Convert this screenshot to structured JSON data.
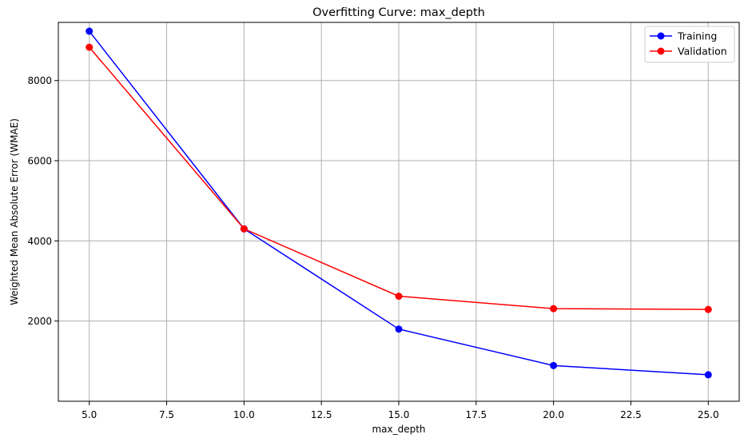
{
  "chart_data": {
    "type": "line",
    "title": "Overfitting Curve: max_depth",
    "xlabel": "max_depth",
    "ylabel": "Weighted Mean Absolute Error (WMAE)",
    "xlim": [
      4.0,
      26.0
    ],
    "ylim": [
      0,
      9450
    ],
    "x_ticks": [
      {
        "value": 5.0,
        "label": "5.0"
      },
      {
        "value": 7.5,
        "label": "7.5"
      },
      {
        "value": 10.0,
        "label": "10.0"
      },
      {
        "value": 12.5,
        "label": "12.5"
      },
      {
        "value": 15.0,
        "label": "15.0"
      },
      {
        "value": 17.5,
        "label": "17.5"
      },
      {
        "value": 20.0,
        "label": "20.0"
      },
      {
        "value": 22.5,
        "label": "22.5"
      },
      {
        "value": 25.0,
        "label": "25.0"
      }
    ],
    "y_ticks": [
      {
        "value": 2000,
        "label": "2000"
      },
      {
        "value": 4000,
        "label": "4000"
      },
      {
        "value": 6000,
        "label": "6000"
      },
      {
        "value": 8000,
        "label": "8000"
      }
    ],
    "grid": true,
    "legend_position": "top-right",
    "x": [
      5,
      10,
      15,
      20,
      25
    ],
    "series": [
      {
        "name": "Training",
        "color": "#0000ff",
        "values": [
          9230,
          4300,
          1800,
          890,
          660
        ]
      },
      {
        "name": "Validation",
        "color": "#ff0000",
        "values": [
          8830,
          4300,
          2620,
          2310,
          2290
        ]
      }
    ]
  }
}
